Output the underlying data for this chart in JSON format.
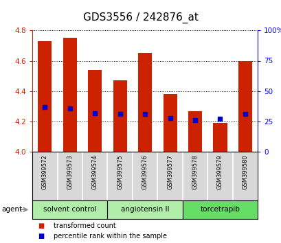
{
  "title": "GDS3556 / 242876_at",
  "samples": [
    "GSM399572",
    "GSM399573",
    "GSM399574",
    "GSM399575",
    "GSM399576",
    "GSM399577",
    "GSM399578",
    "GSM399579",
    "GSM399580"
  ],
  "bar_values": [
    4.73,
    4.75,
    4.54,
    4.47,
    4.65,
    4.38,
    4.27,
    4.19,
    4.6
  ],
  "percentile_values": [
    37,
    36,
    32,
    31,
    31,
    28,
    26,
    27,
    31
  ],
  "bar_color": "#cc2200",
  "percentile_color": "#0000cc",
  "ymin": 4.0,
  "ymax": 4.8,
  "yticks": [
    4.0,
    4.2,
    4.4,
    4.6,
    4.8
  ],
  "right_yticks": [
    0,
    25,
    50,
    75,
    100
  ],
  "right_yticklabels": [
    "0",
    "25",
    "50",
    "75",
    "100%"
  ],
  "groups": [
    {
      "label": "solvent control",
      "samples": [
        0,
        1,
        2
      ],
      "color": "#b0eeaa"
    },
    {
      "label": "angiotensin II",
      "samples": [
        3,
        4,
        5
      ],
      "color": "#b0eeaa"
    },
    {
      "label": "torcetrapib",
      "samples": [
        6,
        7,
        8
      ],
      "color": "#66dd66"
    }
  ],
  "sample_bg_color": "#d8d8d8",
  "agent_label": "agent",
  "legend_red": "transformed count",
  "legend_blue": "percentile rank within the sample",
  "bar_width": 0.55,
  "bg_color": "#ffffff",
  "title_fontsize": 11,
  "tick_fontsize": 7.5,
  "sample_fontsize": 6,
  "group_fontsize": 7.5,
  "legend_fontsize": 7
}
